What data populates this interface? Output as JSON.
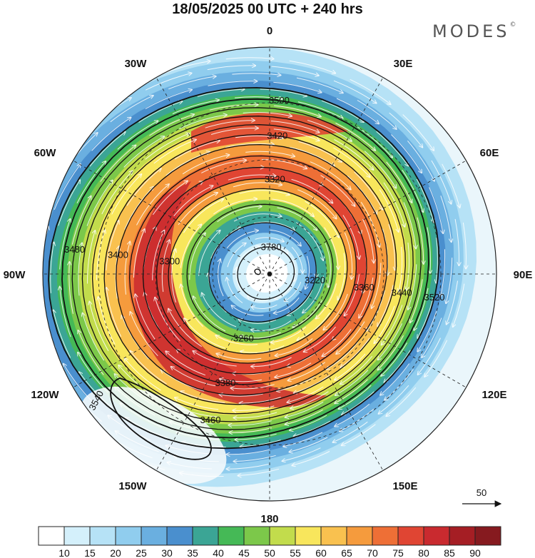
{
  "title": "18/05/2025  00 UTC  + 240 hrs",
  "brand": {
    "name": "MODES",
    "mark": "©"
  },
  "longitude_labels": [
    "0",
    "30E",
    "60E",
    "90E",
    "120E",
    "150E",
    "180",
    "150W",
    "120W",
    "90W",
    "60W",
    "30W"
  ],
  "contours": [
    {
      "value": "3780",
      "r": 38
    },
    {
      "value": "3220",
      "r": 72
    },
    {
      "value": "3260",
      "r": 98
    },
    {
      "value": "3300",
      "r": 120
    },
    {
      "value": "3320",
      "r": 134
    },
    {
      "value": "3360",
      "r": 150
    },
    {
      "value": "3380",
      "r": 166
    },
    {
      "value": "3400",
      "r": 182
    },
    {
      "value": "3420",
      "r": 196
    },
    {
      "value": "3440",
      "r": 210
    },
    {
      "value": "3460",
      "r": 222
    },
    {
      "value": "3480",
      "r": 234
    },
    {
      "value": "3500",
      "r": 246
    },
    {
      "value": "3520",
      "r": 262
    },
    {
      "value": "3540",
      "r": 0
    }
  ],
  "vector_reference": {
    "label": "50"
  },
  "colorbar": {
    "labels": [
      "10",
      "15",
      "20",
      "25",
      "30",
      "35",
      "40",
      "45",
      "50",
      "55",
      "60",
      "65",
      "70",
      "75",
      "80",
      "85",
      "90"
    ],
    "colors": [
      "#ffffff",
      "#d4f0fb",
      "#b6e2f6",
      "#90cdee",
      "#6aafe0",
      "#4a8fce",
      "#3ba595",
      "#45b956",
      "#7cc84a",
      "#c2dc4c",
      "#f8e65c",
      "#f9c14f",
      "#f59b3d",
      "#ee6f36",
      "#e04533",
      "#c92a2f",
      "#a51e24",
      "#861a1f"
    ]
  }
}
